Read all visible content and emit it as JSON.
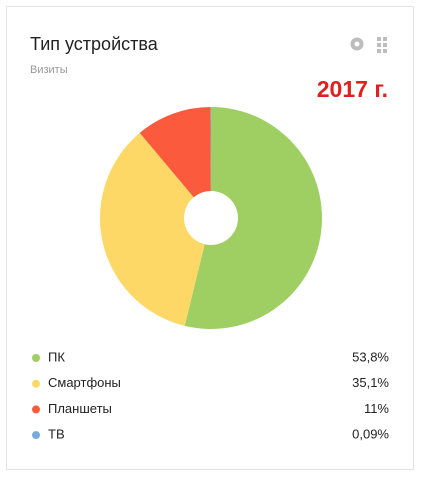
{
  "chart_data": {
    "type": "donut",
    "title": "Тип устройства",
    "subtitle": "Визиты",
    "annotation": "2017 г.",
    "categories": [
      "ПК",
      "Смартфоны",
      "Планшеты",
      "ТВ"
    ],
    "values": [
      53.8,
      35.1,
      11,
      0.09
    ],
    "value_labels": [
      "53,8%",
      "35,1%",
      "11%",
      "0,09%"
    ],
    "colors": [
      "#9fcf63",
      "#fdd867",
      "#fb5a3c",
      "#77aadd"
    ]
  }
}
